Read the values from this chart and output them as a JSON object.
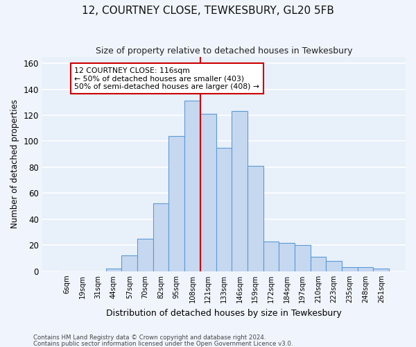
{
  "title1": "12, COURTNEY CLOSE, TEWKESBURY, GL20 5FB",
  "title2": "Size of property relative to detached houses in Tewkesbury",
  "xlabel": "Distribution of detached houses by size in Tewkesbury",
  "ylabel": "Number of detached properties",
  "footer1": "Contains HM Land Registry data © Crown copyright and database right 2024.",
  "footer2": "Contains public sector information licensed under the Open Government Licence v3.0.",
  "bar_labels": [
    "6sqm",
    "19sqm",
    "31sqm",
    "44sqm",
    "57sqm",
    "70sqm",
    "82sqm",
    "95sqm",
    "108sqm",
    "121sqm",
    "133sqm",
    "146sqm",
    "159sqm",
    "172sqm",
    "184sqm",
    "197sqm",
    "210sqm",
    "223sqm",
    "235sqm",
    "248sqm",
    "261sqm"
  ],
  "bar_values": [
    0,
    0,
    0,
    2,
    12,
    25,
    52,
    104,
    131,
    121,
    95,
    123,
    81,
    23,
    22,
    20,
    11,
    8,
    3,
    3,
    2
  ],
  "bar_color": "#c5d8f0",
  "bar_edge_color": "#5b9bd5",
  "background_color": "#e8f0fa",
  "fig_background_color": "#f0f5fd",
  "grid_color": "#ffffff",
  "vline_x": 8.5,
  "vline_color": "#cc0000",
  "annotation_line1": "12 COURTNEY CLOSE: 116sqm",
  "annotation_line2": "← 50% of detached houses are smaller (403)",
  "annotation_line3": "50% of semi-detached houses are larger (408) →",
  "annotation_box_color": "#cc0000",
  "ylim": [
    0,
    165
  ],
  "yticks": [
    0,
    20,
    40,
    60,
    80,
    100,
    120,
    140,
    160
  ],
  "title1_fontsize": 11,
  "title2_fontsize": 9
}
